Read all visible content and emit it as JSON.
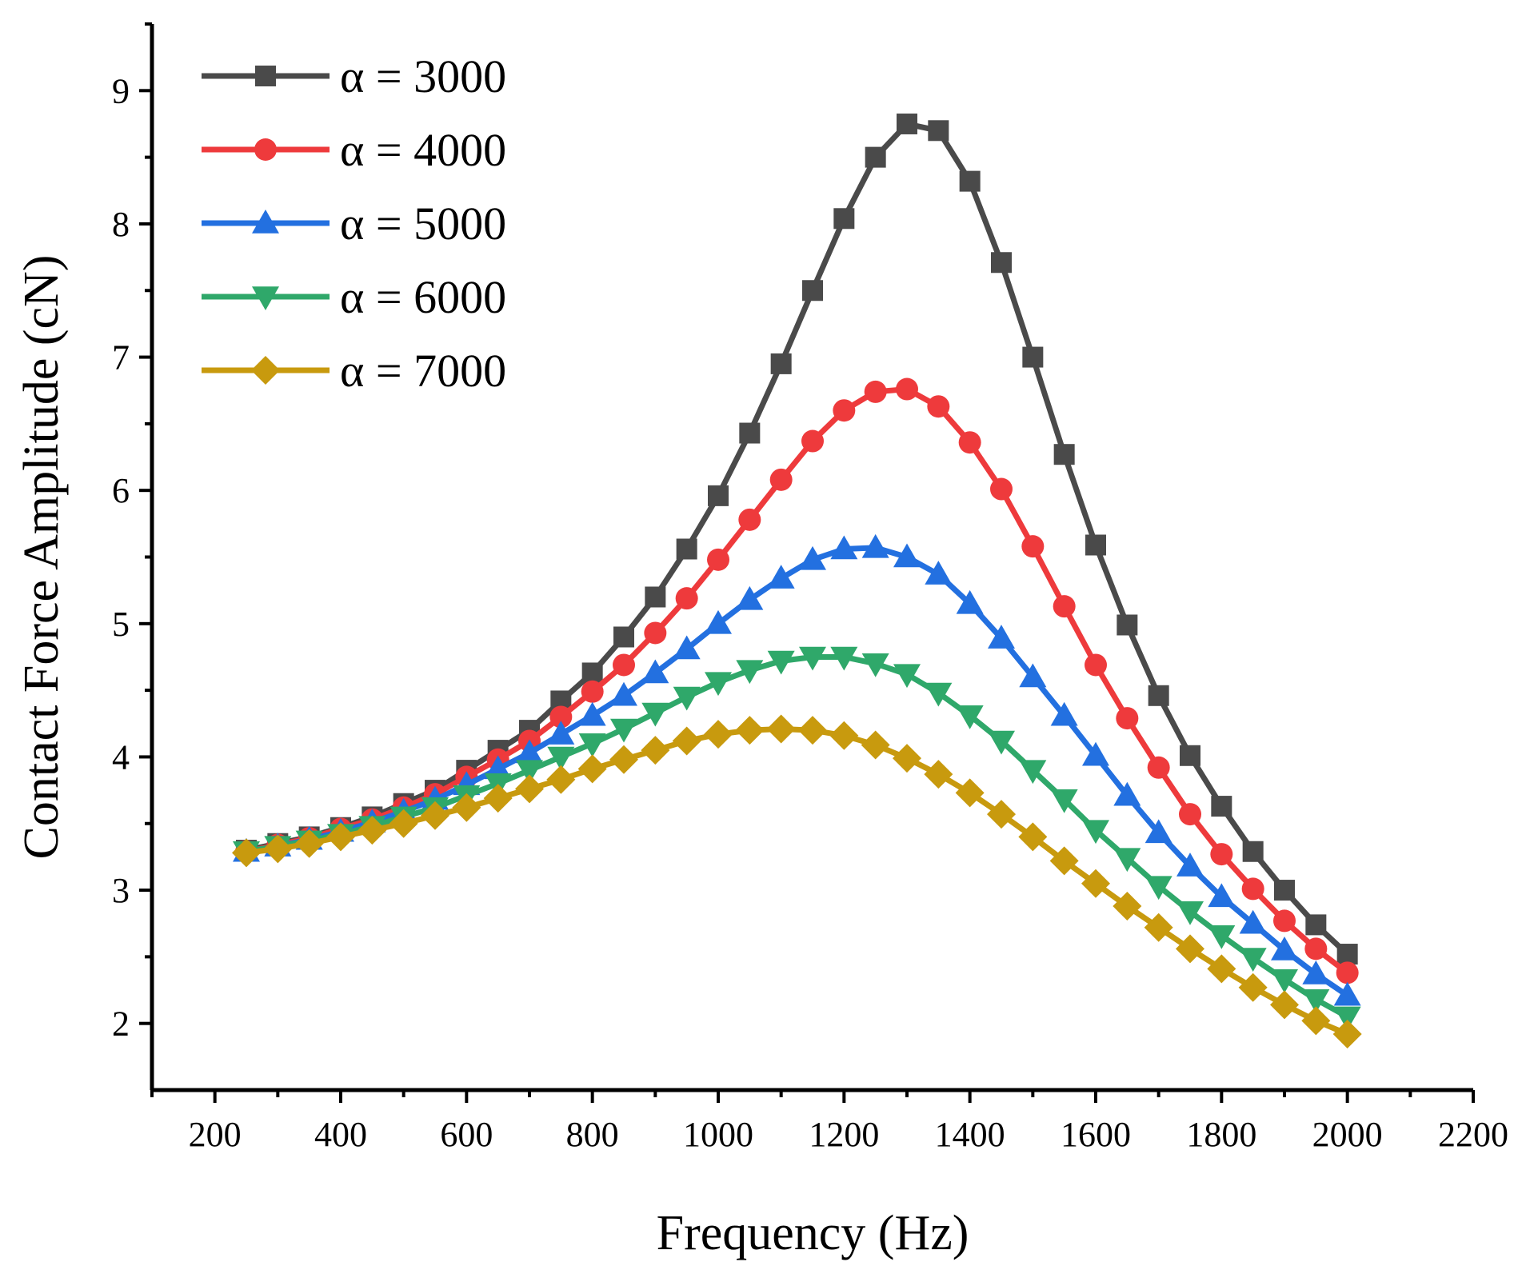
{
  "chart_data": {
    "type": "line",
    "xlabel": "Frequency (Hz)",
    "ylabel": "Contact Force Amplitude (cN)",
    "xlim": [
      100,
      2200
    ],
    "ylim": [
      1.5,
      9.5
    ],
    "xticks": [
      200,
      400,
      600,
      800,
      1000,
      1200,
      1400,
      1600,
      1800,
      2000,
      2200
    ],
    "yticks": [
      2,
      3,
      4,
      5,
      6,
      7,
      8,
      9
    ],
    "legend_position": "top-left",
    "x": [
      250,
      300,
      350,
      400,
      450,
      500,
      550,
      600,
      650,
      700,
      750,
      800,
      850,
      900,
      950,
      1000,
      1050,
      1100,
      1150,
      1200,
      1250,
      1300,
      1350,
      1400,
      1450,
      1500,
      1550,
      1600,
      1650,
      1700,
      1750,
      1800,
      1850,
      1900,
      1950,
      2000
    ],
    "series": [
      {
        "name": "α = 3000",
        "color": "#4a4a4a",
        "marker": "square",
        "values": [
          3.3,
          3.35,
          3.4,
          3.47,
          3.55,
          3.65,
          3.75,
          3.9,
          4.05,
          4.2,
          4.42,
          4.63,
          4.9,
          5.2,
          5.56,
          5.96,
          6.43,
          6.95,
          7.5,
          8.04,
          8.5,
          8.75,
          8.7,
          8.32,
          7.71,
          7.0,
          6.27,
          5.59,
          4.99,
          4.46,
          4.01,
          3.63,
          3.29,
          3.0,
          2.74,
          2.52
        ]
      },
      {
        "name": "α = 4000",
        "color": "#ee3a3c",
        "marker": "circle",
        "values": [
          3.29,
          3.34,
          3.39,
          3.46,
          3.53,
          3.62,
          3.72,
          3.85,
          3.98,
          4.12,
          4.3,
          4.49,
          4.69,
          4.93,
          5.19,
          5.48,
          5.78,
          6.08,
          6.37,
          6.6,
          6.74,
          6.76,
          6.63,
          6.36,
          6.01,
          5.58,
          5.13,
          4.69,
          4.29,
          3.92,
          3.57,
          3.27,
          3.01,
          2.77,
          2.56,
          2.38
        ]
      },
      {
        "name": "α = 5000",
        "color": "#2370e0",
        "marker": "triangle-up",
        "values": [
          3.29,
          3.33,
          3.38,
          3.44,
          3.51,
          3.59,
          3.68,
          3.79,
          3.91,
          4.03,
          4.17,
          4.31,
          4.46,
          4.63,
          4.81,
          5.0,
          5.18,
          5.34,
          5.48,
          5.56,
          5.57,
          5.5,
          5.37,
          5.15,
          4.89,
          4.6,
          4.31,
          4.01,
          3.71,
          3.43,
          3.18,
          2.95,
          2.75,
          2.55,
          2.37,
          2.21
        ]
      },
      {
        "name": "α = 6000",
        "color": "#2fa86a",
        "marker": "triangle-down",
        "values": [
          3.29,
          3.33,
          3.37,
          3.42,
          3.48,
          3.55,
          3.62,
          3.71,
          3.8,
          3.9,
          4.0,
          4.1,
          4.21,
          4.33,
          4.45,
          4.56,
          4.65,
          4.72,
          4.75,
          4.75,
          4.7,
          4.62,
          4.48,
          4.31,
          4.12,
          3.9,
          3.68,
          3.45,
          3.24,
          3.03,
          2.84,
          2.66,
          2.49,
          2.33,
          2.18,
          2.05
        ]
      },
      {
        "name": "α = 7000",
        "color": "#c89a0e",
        "marker": "diamond",
        "values": [
          3.28,
          3.31,
          3.35,
          3.4,
          3.45,
          3.5,
          3.56,
          3.62,
          3.69,
          3.76,
          3.83,
          3.91,
          3.98,
          4.05,
          4.12,
          4.17,
          4.2,
          4.21,
          4.2,
          4.16,
          4.09,
          3.99,
          3.87,
          3.73,
          3.57,
          3.4,
          3.22,
          3.05,
          2.88,
          2.72,
          2.56,
          2.41,
          2.27,
          2.14,
          2.02,
          1.92
        ]
      }
    ]
  }
}
